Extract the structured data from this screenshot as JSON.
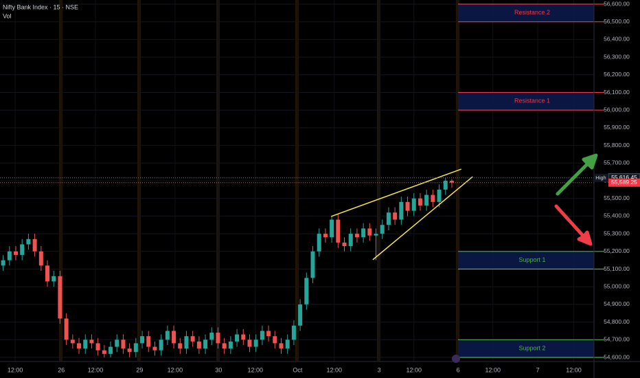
{
  "chart_data": {
    "type": "candlestick",
    "title": "Nifty Bank Index · 15 · NSE",
    "subtitle": "Vol",
    "up_color": "#26a69a",
    "down_color": "#ef5350",
    "xlim": [
      0,
      94
    ],
    "ylim": [
      54600,
      56600
    ],
    "yticks": [
      {
        "value": 54600,
        "label": "54,600.00"
      },
      {
        "value": 54700,
        "label": "54,700.00"
      },
      {
        "value": 54800,
        "label": "54,800.00"
      },
      {
        "value": 54900,
        "label": "54,900.00"
      },
      {
        "value": 55000,
        "label": "55,000.00"
      },
      {
        "value": 55100,
        "label": "55,100.00"
      },
      {
        "value": 55200,
        "label": "55,200.00"
      },
      {
        "value": 55300,
        "label": "55,300.00"
      },
      {
        "value": 55400,
        "label": "55,400.00"
      },
      {
        "value": 55500,
        "label": "55,500.00"
      },
      {
        "value": 55600,
        "label": "55,600.00"
      },
      {
        "value": 55700,
        "label": "55,700.00"
      },
      {
        "value": 55800,
        "label": "55,800.00"
      },
      {
        "value": 55900,
        "label": "55,900.00"
      },
      {
        "value": 56000,
        "label": "56,000.00"
      },
      {
        "value": 56100,
        "label": "56,100.00"
      },
      {
        "value": 56200,
        "label": "56,200.00"
      },
      {
        "value": 56300,
        "label": "56,300.00"
      },
      {
        "value": 56400,
        "label": "56,400.00"
      },
      {
        "value": 56500,
        "label": "56,500.00"
      },
      {
        "value": 56600,
        "label": "56,600.00"
      }
    ],
    "xticks": [
      {
        "value": 2.4,
        "label": "12:00"
      },
      {
        "value": 9.7,
        "label": "26"
      },
      {
        "value": 15.1,
        "label": "12:00"
      },
      {
        "value": 22.1,
        "label": "29"
      },
      {
        "value": 27.7,
        "label": "12:00"
      },
      {
        "value": 34.6,
        "label": "30"
      },
      {
        "value": 40.4,
        "label": "12:00"
      },
      {
        "value": 47.1,
        "label": "Oct"
      },
      {
        "value": 52.9,
        "label": "12:00"
      },
      {
        "value": 60,
        "label": "3"
      },
      {
        "value": 65.5,
        "label": "12:00"
      },
      {
        "value": 72.5,
        "label": "6"
      },
      {
        "value": 78,
        "label": "12:00"
      },
      {
        "value": 85.1,
        "label": "7"
      },
      {
        "value": 90.8,
        "label": "12:00"
      }
    ],
    "x": [
      0.5,
      1.5,
      2.5,
      3.5,
      4.5,
      5.5,
      6.5,
      7.5,
      8.5,
      9.5,
      10.5,
      11.5,
      12.5,
      13.5,
      14.5,
      15.5,
      16.5,
      17.5,
      18.5,
      19.5,
      20.5,
      21.5,
      22.5,
      23.5,
      24.5,
      25.5,
      26.5,
      27.5,
      28.5,
      29.5,
      30.5,
      31.5,
      32.5,
      33.5,
      34.5,
      35.5,
      36.5,
      37.5,
      38.5,
      39.5,
      40.5,
      41.5,
      42.5,
      43.5,
      44.5,
      45.5,
      46.5,
      47.5,
      48.5,
      49.5,
      50.5,
      51.5,
      52.5,
      53.5,
      54.5,
      55.5,
      56.5,
      57.5,
      58.5,
      59.5,
      60.5,
      61.5,
      62.5,
      63.5,
      64.5,
      65.5,
      66.5,
      67.5,
      68.5,
      69.5,
      70.5,
      71.5
    ],
    "open": [
      55120,
      55150,
      55200,
      55180,
      55240,
      55270,
      55200,
      55120,
      55030,
      55060,
      54820,
      54700,
      54680,
      54650,
      54700,
      54680,
      54640,
      54620,
      54660,
      54700,
      54650,
      54630,
      54680,
      54720,
      54660,
      54640,
      54700,
      54750,
      54680,
      54650,
      54720,
      54690,
      54650,
      54700,
      54740,
      54680,
      54650,
      54690,
      54730,
      54700,
      54660,
      54700,
      54750,
      54720,
      54680,
      54650,
      54700,
      54780,
      54900,
      55050,
      55200,
      55300,
      55280,
      55380,
      55250,
      55230,
      55300,
      55280,
      55330,
      55290,
      55300,
      55350,
      55420,
      55380,
      55480,
      55430,
      55500,
      55460,
      55520,
      55480,
      55550,
      55600
    ],
    "high": [
      55180,
      55230,
      55230,
      55270,
      55300,
      55300,
      55230,
      55150,
      55090,
      55090,
      54850,
      54730,
      54710,
      54730,
      54730,
      54710,
      54670,
      54690,
      54730,
      54730,
      54680,
      54710,
      54750,
      54750,
      54690,
      54730,
      54780,
      54780,
      54710,
      54750,
      54750,
      54720,
      54730,
      54770,
      54770,
      54710,
      54720,
      54760,
      54760,
      54730,
      54730,
      54780,
      54780,
      54750,
      54710,
      54730,
      54810,
      54930,
      55080,
      55230,
      55330,
      55330,
      55400,
      55410,
      55280,
      55330,
      55330,
      55360,
      55360,
      55330,
      55380,
      55450,
      55450,
      55510,
      55510,
      55530,
      55530,
      55550,
      55550,
      55580,
      55616.45,
      55610
    ],
    "low": [
      55090,
      55120,
      55150,
      55150,
      55210,
      55170,
      55090,
      55000,
      55000,
      54790,
      54670,
      54650,
      54620,
      54620,
      54650,
      54610,
      54600,
      54600,
      54630,
      54620,
      54600,
      54600,
      54650,
      54630,
      54610,
      54610,
      54670,
      54650,
      54620,
      54620,
      54660,
      54620,
      54620,
      54670,
      54650,
      54620,
      54620,
      54660,
      54670,
      54630,
      54630,
      54670,
      54690,
      54650,
      54620,
      54620,
      54670,
      54750,
      54870,
      55020,
      55170,
      55250,
      55250,
      55220,
      55200,
      55200,
      55250,
      55250,
      55260,
      55150,
      55270,
      55320,
      55350,
      55350,
      55400,
      55400,
      55430,
      55430,
      55450,
      55450,
      55520,
      55560
    ],
    "close": [
      55150,
      55200,
      55180,
      55240,
      55270,
      55200,
      55120,
      55030,
      55060,
      54820,
      54700,
      54680,
      54650,
      54700,
      54680,
      54640,
      54620,
      54660,
      54700,
      54650,
      54630,
      54680,
      54720,
      54660,
      54640,
      54700,
      54750,
      54680,
      54650,
      54720,
      54690,
      54650,
      54700,
      54740,
      54680,
      54650,
      54690,
      54730,
      54700,
      54660,
      54700,
      54750,
      54720,
      54680,
      54650,
      54700,
      54780,
      54900,
      55050,
      55200,
      55300,
      55280,
      55380,
      55250,
      55230,
      55300,
      55280,
      55330,
      55290,
      55300,
      55350,
      55420,
      55380,
      55480,
      55430,
      55500,
      55460,
      55520,
      55480,
      55550,
      55600,
      55589.25
    ],
    "zones": [
      {
        "name": "Resistance 2",
        "low": 56500,
        "high": 56600,
        "color": "#f23645",
        "label_color": "#f23645"
      },
      {
        "name": "Resistance 1",
        "low": 56000,
        "high": 56100,
        "color": "#f23645",
        "label_color": "#f23645"
      },
      {
        "name": "Support 1",
        "low": 55100,
        "high": 55200,
        "color": "#4caf50",
        "label_color": "#4caf50"
      },
      {
        "name": "Support 2",
        "low": 54600,
        "high": 54700,
        "color": "#4caf50",
        "label_color": "#4caf50"
      }
    ],
    "trendlines": [
      {
        "x": [
          52.4,
          73
        ],
        "y": [
          55398,
          55666
        ]
      },
      {
        "x": [
          59,
          74.8
        ],
        "y": [
          55153,
          55623
        ]
      }
    ],
    "trendline_color": "#f5e642",
    "price_markers": [
      {
        "name": "High",
        "value": 55616.45,
        "label": "55,616.45",
        "color": "#131722"
      },
      {
        "value": 55589.25,
        "label": "55,589.25",
        "color": "#f23645"
      }
    ]
  }
}
